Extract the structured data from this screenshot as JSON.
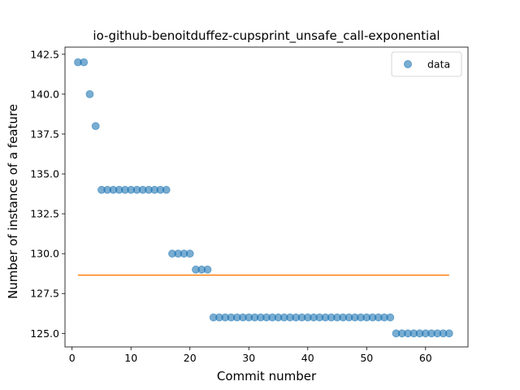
{
  "chart_data": {
    "type": "scatter",
    "title": "io-github-benoitduffez-cupsprint_unsafe_call-exponential",
    "xlabel": "Commit number",
    "ylabel": "Number of instance of a feature",
    "xlim": [
      -1.2,
      67.2
    ],
    "ylim": [
      124.15,
      142.95
    ],
    "xticks": [
      0,
      10,
      20,
      30,
      40,
      50,
      60
    ],
    "yticks": [
      125.0,
      127.5,
      130.0,
      132.5,
      135.0,
      137.5,
      140.0,
      142.5
    ],
    "ytick_labels": [
      "125.0",
      "127.5",
      "130.0",
      "132.5",
      "135.0",
      "137.5",
      "140.0",
      "142.5"
    ],
    "grid": false,
    "legend_position": "top-right",
    "colors": {
      "scatter": "#1f77b4",
      "line": "#ff7f0e"
    },
    "series": [
      {
        "name": "data",
        "kind": "scatter",
        "x": [
          1,
          2,
          3,
          4,
          5,
          6,
          7,
          8,
          9,
          10,
          11,
          12,
          13,
          14,
          15,
          16,
          17,
          18,
          19,
          20,
          21,
          22,
          23,
          24,
          25,
          26,
          27,
          28,
          29,
          30,
          31,
          32,
          33,
          34,
          35,
          36,
          37,
          38,
          39,
          40,
          41,
          42,
          43,
          44,
          45,
          46,
          47,
          48,
          49,
          50,
          51,
          52,
          53,
          54,
          55,
          56,
          57,
          58,
          59,
          60,
          61,
          62,
          63,
          64
        ],
        "y": [
          142,
          142,
          140,
          138,
          134,
          134,
          134,
          134,
          134,
          134,
          134,
          134,
          134,
          134,
          134,
          134,
          130,
          130,
          130,
          130,
          129,
          129,
          129,
          126,
          126,
          126,
          126,
          126,
          126,
          126,
          126,
          126,
          126,
          126,
          126,
          126,
          126,
          126,
          126,
          126,
          126,
          126,
          126,
          126,
          126,
          126,
          126,
          126,
          126,
          126,
          126,
          126,
          126,
          126,
          125,
          125,
          125,
          125,
          125,
          125,
          125,
          125,
          125,
          125
        ]
      },
      {
        "kind": "line",
        "x": [
          1,
          64
        ],
        "y": [
          128.65,
          128.65
        ]
      }
    ]
  }
}
